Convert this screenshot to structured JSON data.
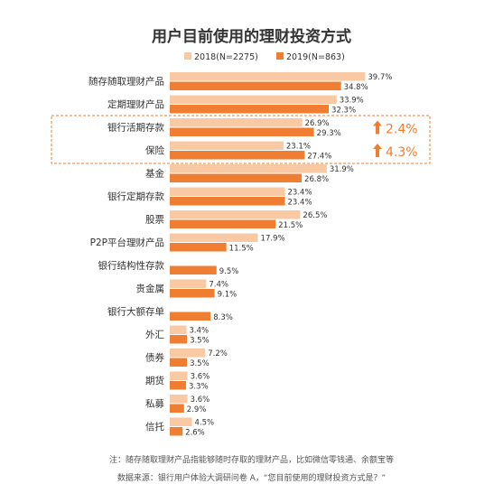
{
  "title": "用户目前使用的理财投资方式",
  "colors": {
    "s2018": "#f9c9a4",
    "s2019": "#ef7e32",
    "highlight": "#ef7e32"
  },
  "chart_data": {
    "type": "bar",
    "orientation": "horizontal",
    "title": "用户目前使用的理财投资方式",
    "categories": [
      "随存随取理财产品",
      "定期理财产品",
      "银行活期存款",
      "保险",
      "基金",
      "银行定期存款",
      "股票",
      "P2P平台理财产品",
      "银行结构性存款",
      "贵金属",
      "银行大额存单",
      "外汇",
      "债券",
      "期货",
      "私募",
      "信托"
    ],
    "series": [
      {
        "name": "2018(N=2275)",
        "values": [
          39.7,
          33.9,
          26.9,
          23.1,
          31.9,
          23.4,
          26.5,
          17.9,
          null,
          7.4,
          null,
          3.4,
          7.2,
          3.6,
          3.6,
          4.5
        ],
        "labels": [
          "39.7%",
          "33.9%",
          "26.9%",
          "23.1%",
          "31.9%",
          "23.4%",
          "26.5%",
          "17.9%",
          "",
          "7.4%",
          "",
          "3.4%",
          "7.2%",
          "3.6%",
          "3.6%",
          "4.5%"
        ]
      },
      {
        "name": "2019(N=863)",
        "values": [
          34.8,
          32.3,
          29.3,
          27.4,
          26.8,
          23.4,
          21.5,
          11.5,
          9.5,
          9.1,
          8.3,
          3.5,
          3.5,
          3.3,
          2.9,
          2.6
        ],
        "labels": [
          "34.8%",
          "32.3%",
          "29.3%",
          "27.4%",
          "26.8%",
          "23.4%",
          "21.5%",
          "11.5%",
          "9.5%",
          "9.1%",
          "8.3%",
          "3.5%",
          "3.5%",
          "3.3%",
          "2.9%",
          "2.6%"
        ]
      }
    ],
    "xlim": [
      0,
      40
    ],
    "legend": "top-center",
    "highlight_rows": [
      2,
      3
    ],
    "highlight_changes": [
      "2.4%",
      "4.3%"
    ]
  },
  "notes": [
    "注：随存随取理财产品指能够随时存取的理财产品，比如微信零钱通、余额宝等",
    "数据来源：银行用户体验大调研问卷 A，“您目前使用的理财投资方式是？”"
  ]
}
